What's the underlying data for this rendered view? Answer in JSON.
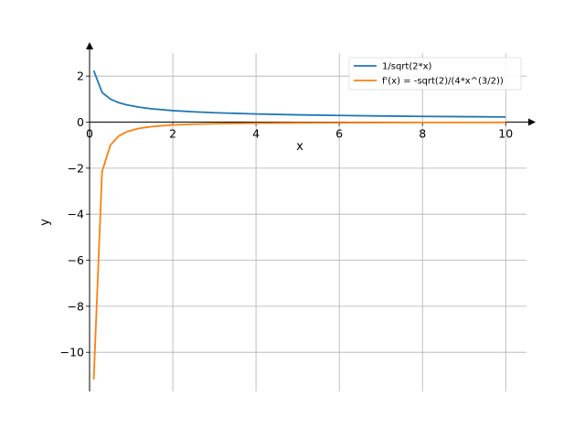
{
  "chart_data": {
    "type": "line",
    "title": "",
    "xlabel": "x",
    "ylabel": "y",
    "xlim": [
      0,
      10.5
    ],
    "ylim": [
      -11.7,
      3.0
    ],
    "xticks": [
      0,
      2,
      4,
      6,
      8,
      10
    ],
    "xtick_labels": [
      "0",
      "2",
      "4",
      "6",
      "8",
      "10"
    ],
    "yticks": [
      2,
      0,
      -2,
      -4,
      -6,
      -8,
      -10
    ],
    "ytick_labels": [
      "2",
      "0",
      "−2",
      "−4",
      "−6",
      "−8",
      "−10"
    ],
    "grid": true,
    "legend_position": "top-right",
    "series": [
      {
        "name": "1/sqrt(2*x)",
        "color": "#1f77b4",
        "x": [
          0.1,
          0.3,
          0.5,
          0.7,
          0.9,
          1.2,
          1.5,
          2,
          2.5,
          3,
          4,
          5,
          6,
          7,
          8,
          9,
          10
        ],
        "y": [
          2.236,
          1.291,
          1.0,
          0.845,
          0.745,
          0.645,
          0.577,
          0.5,
          0.447,
          0.408,
          0.354,
          0.316,
          0.289,
          0.267,
          0.25,
          0.236,
          0.224
        ]
      },
      {
        "name": "f'(x) = -sqrt(2)/(4*x^(3/2))",
        "color": "#ff7f0e",
        "x": [
          0.1,
          0.3,
          0.5,
          0.7,
          0.9,
          1.2,
          1.5,
          2,
          2.5,
          3,
          4,
          5,
          6,
          7,
          8,
          9,
          10
        ],
        "y": [
          -11.18,
          -2.152,
          -1.0,
          -0.604,
          -0.414,
          -0.269,
          -0.192,
          -0.125,
          -0.089,
          -0.068,
          -0.044,
          -0.032,
          -0.024,
          -0.019,
          -0.016,
          -0.013,
          -0.011
        ]
      }
    ]
  }
}
